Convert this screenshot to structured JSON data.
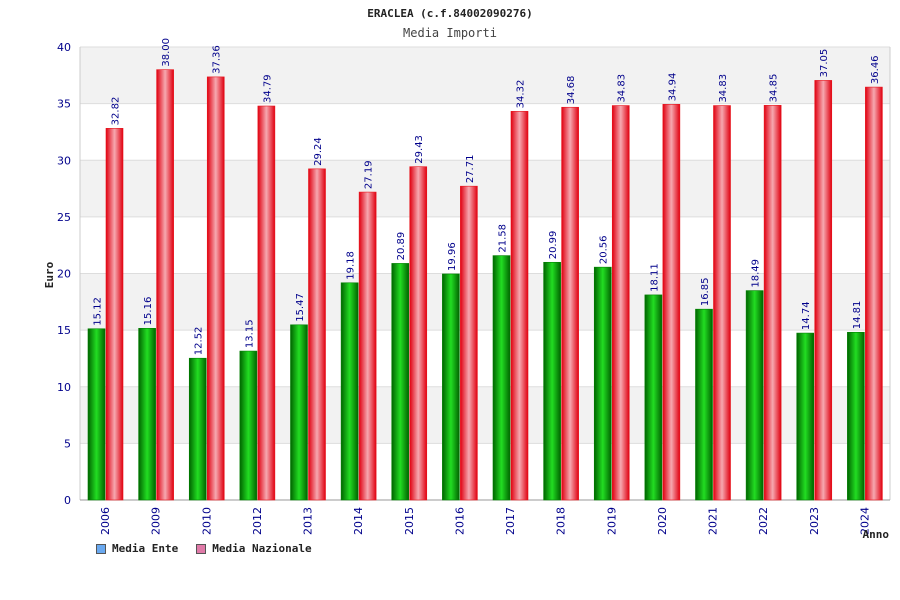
{
  "chart_data": {
    "type": "bar",
    "title": "ERACLEA (c.f.84002090276)",
    "subtitle": "Media Importi",
    "ylabel": "Euro",
    "xlabel": "Anno",
    "ylim": [
      0,
      40
    ],
    "yticks": [
      0,
      5,
      10,
      15,
      20,
      25,
      30,
      35,
      40
    ],
    "grid": true,
    "legend_position": "bottom-left",
    "categories": [
      "2006",
      "2009",
      "2010",
      "2012",
      "2013",
      "2014",
      "2015",
      "2016",
      "2017",
      "2018",
      "2019",
      "2020",
      "2021",
      "2022",
      "2023",
      "2024"
    ],
    "series": [
      {
        "name": "Media Ente",
        "color": "#00b000",
        "legend_color": "#6aa9f0",
        "values": [
          15.12,
          15.16,
          12.52,
          13.15,
          15.47,
          19.18,
          20.89,
          19.96,
          21.58,
          20.99,
          20.56,
          18.11,
          16.85,
          18.49,
          14.74,
          14.81
        ],
        "labels": [
          "15.12",
          "15.16",
          "12.52",
          "13.15",
          "15.47",
          "19.18",
          "20.89",
          "19.96",
          "21.58",
          "20.99",
          "20.56",
          "18.11",
          "16.85",
          "18.49",
          "14.74",
          "14.81"
        ]
      },
      {
        "name": "Media Nazionale",
        "color": "#e8141c",
        "legend_color": "#e07aa8",
        "values": [
          32.82,
          38.0,
          37.36,
          34.79,
          29.24,
          27.19,
          29.43,
          27.71,
          34.32,
          34.68,
          34.83,
          34.94,
          34.83,
          34.85,
          37.05,
          36.46
        ],
        "labels": [
          "32.82",
          "38.00",
          "37.36",
          "34.79",
          "29.24",
          "27.19",
          "29.43",
          "27.71",
          "34.32",
          "34.68",
          "34.83",
          "34.94",
          "34.83",
          "34.85",
          "37.05",
          "36.46"
        ]
      }
    ]
  }
}
